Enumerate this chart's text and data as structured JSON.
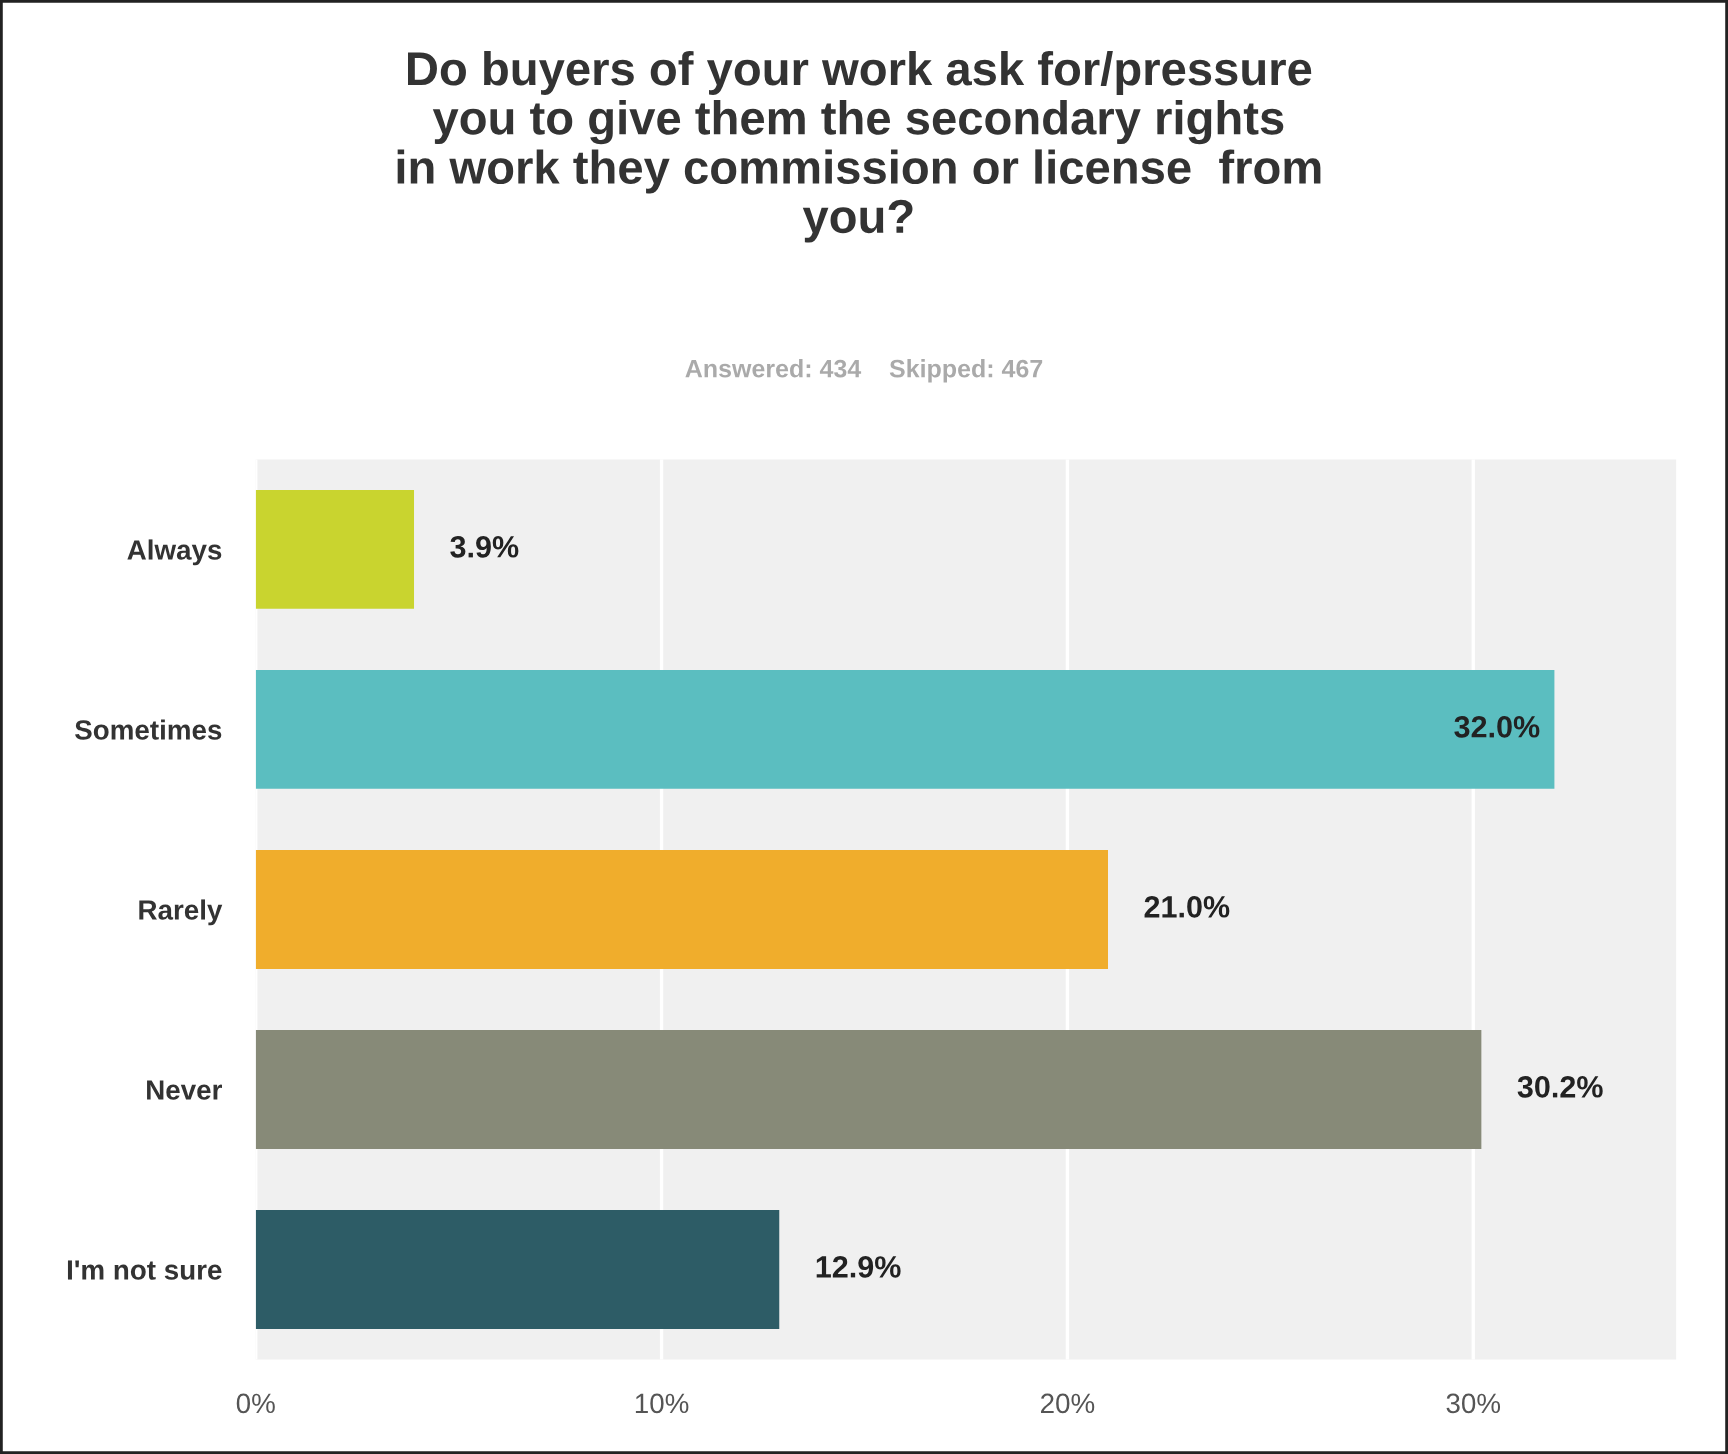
{
  "chart_data": {
    "type": "bar",
    "orientation": "horizontal",
    "title": "Do buyers of your work ask for/pressure\nyou to give them the secondary rights\nin work they commission or license  from\nyou?",
    "subtitle": "Answered: 434    Skipped: 467",
    "categories": [
      "Always",
      "Sometimes",
      "Rarely",
      "Never",
      "I'm not sure"
    ],
    "values": [
      3.9,
      32.0,
      21.0,
      30.2,
      12.9
    ],
    "colors": [
      "#c9d42f",
      "#5bbec0",
      "#f0ad2c",
      "#878a78",
      "#2d5c66"
    ],
    "value_labels": [
      "3.9%",
      "32.0%",
      "21.0%",
      "30.2%",
      "12.9%"
    ],
    "xlim": [
      0,
      35
    ],
    "xticks": [
      {
        "value": 0,
        "label": "0%"
      },
      {
        "value": 10,
        "label": "10%"
      },
      {
        "value": 20,
        "label": "20%"
      },
      {
        "value": 30,
        "label": "30%"
      }
    ],
    "grid": "x"
  }
}
